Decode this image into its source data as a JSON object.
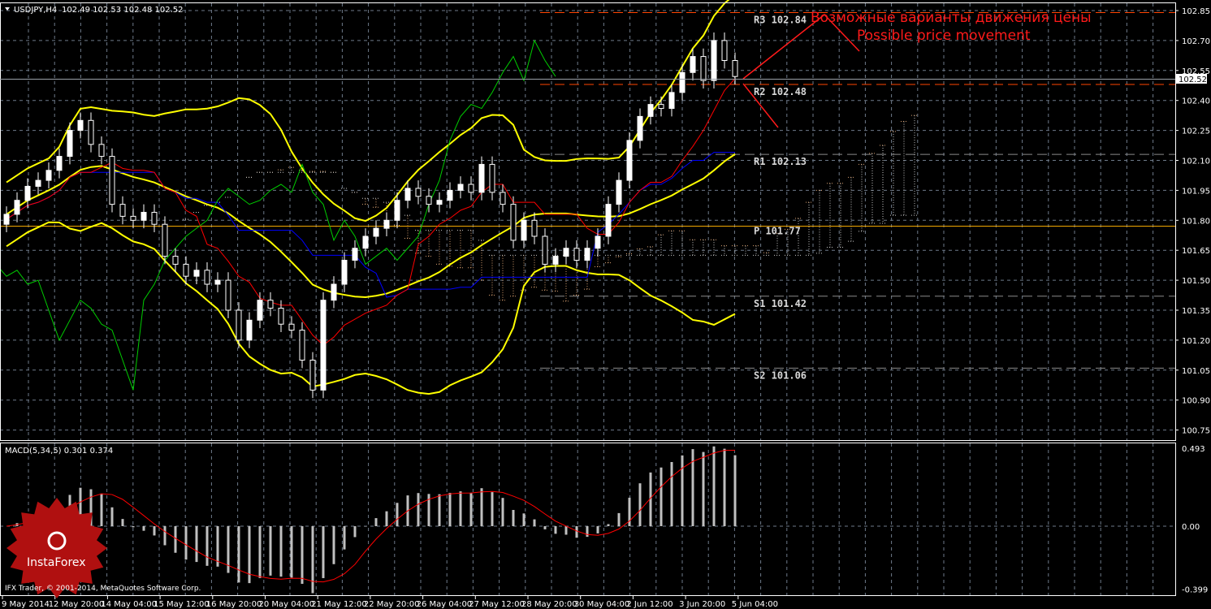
{
  "chart_data": {
    "type": "candlestick",
    "header": {
      "symbol": "USDJPY,H4",
      "ohlc_text": "102.49 102.53 102.48 102.52"
    },
    "last_bar": {
      "open": 102.49,
      "high": 102.53,
      "low": 102.48,
      "close": 102.52
    },
    "price_axis": {
      "range": [
        100.68,
        102.9
      ],
      "ticks": [
        "102.85",
        "102.70",
        "102.55",
        "102.40",
        "102.25",
        "102.10",
        "101.95",
        "101.80",
        "101.65",
        "101.50",
        "101.35",
        "101.20",
        "101.05",
        "100.90",
        "100.75"
      ],
      "current_price": "102.52"
    },
    "time_axis": {
      "labels": [
        "9 May 2014",
        "12 May 20:00",
        "14 May 04:00",
        "15 May 12:00",
        "16 May 20:00",
        "20 May 04:00",
        "21 May 12:00",
        "22 May 20:00",
        "26 May 04:00",
        "27 May 12:00",
        "28 May 20:00",
        "30 May 04:00",
        "2 Jun 12:00",
        "3 Jun 20:00",
        "5 Jun 04:00"
      ]
    },
    "grid": true,
    "close": [
      101.83,
      101.9,
      101.97,
      102.0,
      102.05,
      102.12,
      102.25,
      102.3,
      102.18,
      102.12,
      101.88,
      101.82,
      101.8,
      101.84,
      101.78,
      101.62,
      101.58,
      101.52,
      101.55,
      101.48,
      101.5,
      101.35,
      101.2,
      101.3,
      101.4,
      101.36,
      101.28,
      101.25,
      101.1,
      100.95,
      101.4,
      101.48,
      101.6,
      101.66,
      101.72,
      101.76,
      101.8,
      101.9,
      101.96,
      101.92,
      101.88,
      101.9,
      101.95,
      101.98,
      101.94,
      102.08,
      101.94,
      101.88,
      101.7,
      101.8,
      101.72,
      101.58,
      101.62,
      101.66,
      101.6,
      101.66,
      101.72,
      101.88,
      102.0,
      102.2,
      102.32,
      102.38,
      102.36,
      102.44,
      102.54,
      102.62,
      102.5,
      102.7,
      102.6,
      102.52
    ],
    "pivots": [
      {
        "label": "R3 102.84",
        "value": 102.84,
        "color": "#ff4500"
      },
      {
        "label": "R2 102.48",
        "value": 102.48,
        "color": "#ff4500"
      },
      {
        "label": "R1 102.13",
        "value": 102.13,
        "color": "#8a8a8a"
      },
      {
        "label": "P 101.77",
        "value": 101.77,
        "color": "#ffb000"
      },
      {
        "label": "S1 101.42",
        "value": 101.42,
        "color": "#8a8a8a"
      },
      {
        "label": "S2 101.06",
        "value": 101.06,
        "color": "#8a8a8a"
      }
    ],
    "annotation": {
      "line1": "Возможные варианты движения цены",
      "line2": "Possible price movement",
      "color": "#ff1a1a"
    },
    "macd": {
      "label": "MACD(5,34,5) 0.301 0.374",
      "ticks": [
        "0.493",
        "0.00",
        "-0.399"
      ],
      "range": [
        -0.399,
        0.493
      ],
      "histogram_color": "#c0c0c0",
      "signal_color": "#ff0000"
    },
    "colors": {
      "bollinger": "#ffff00",
      "tenkan": "#ff0000",
      "kijun": "#0000ff",
      "chikou": "#00cc00",
      "grid": "#6e7a8a"
    }
  },
  "footer": {
    "copyright": "IFX Trader, © 2001-2014, MetaQuotes Software Corp."
  },
  "logo": {
    "text": "InstaForex"
  }
}
